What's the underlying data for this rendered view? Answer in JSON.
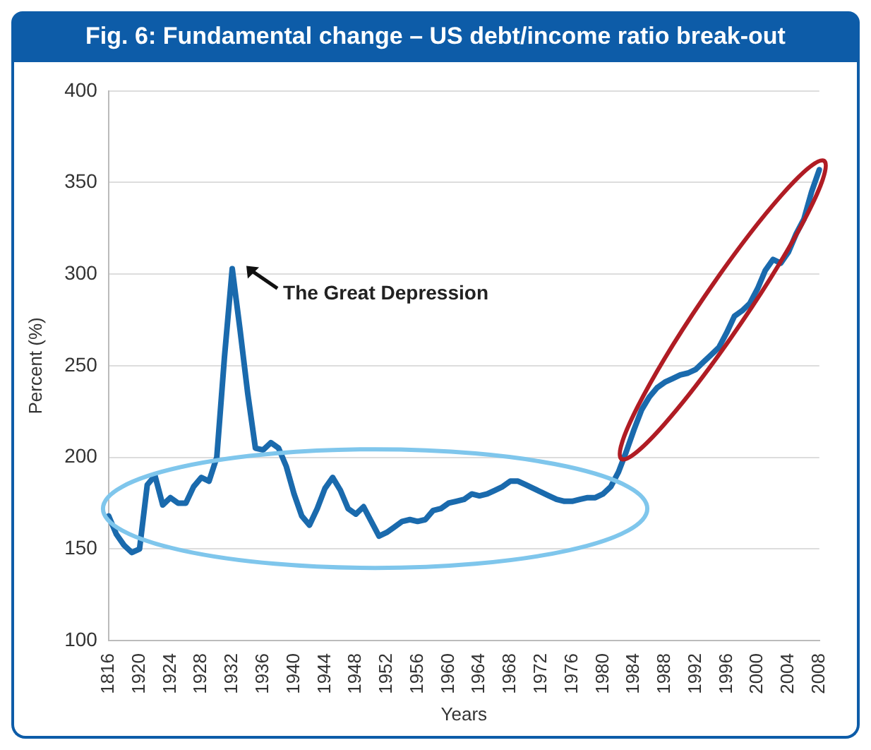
{
  "chart_data": {
    "type": "line",
    "title": "Fig. 6: Fundamental change – US debt/income ratio break-out",
    "xlabel": "Years",
    "ylabel": "Percent (%)",
    "categories": [
      "1816",
      null,
      null,
      null,
      "1920",
      null,
      null,
      null,
      "1924",
      null,
      null,
      null,
      "1928",
      null,
      null,
      null,
      "1932",
      null,
      null,
      null,
      "1936",
      null,
      null,
      null,
      "1940",
      null,
      null,
      null,
      "1944",
      null,
      null,
      null,
      "1948",
      null,
      null,
      null,
      "1952",
      null,
      null,
      null,
      "1956",
      null,
      null,
      null,
      "1960",
      null,
      null,
      null,
      "1964",
      null,
      null,
      null,
      "1968",
      null,
      null,
      null,
      "1972",
      null,
      null,
      null,
      "1976",
      null,
      null,
      null,
      "1980",
      null,
      null,
      null,
      "1984",
      null,
      null,
      null,
      "1988",
      null,
      null,
      null,
      "1992",
      null,
      null,
      null,
      "1996",
      null,
      null,
      null,
      "2000",
      null,
      null,
      null,
      "2004",
      null,
      null,
      null,
      "2008"
    ],
    "series": [
      {
        "color": "#1a6aad",
        "values": [
          168,
          158,
          152,
          148,
          150,
          185,
          190,
          174,
          178,
          175,
          175,
          184,
          189,
          187,
          200,
          255,
          303,
          270,
          235,
          205,
          204,
          208,
          205,
          195,
          180,
          168,
          163,
          172,
          183,
          189,
          182,
          172,
          169,
          173,
          165,
          157,
          159,
          162,
          165,
          166,
          165,
          166,
          171,
          172,
          175,
          176,
          177,
          180,
          179,
          180,
          182,
          184,
          187,
          187,
          185,
          183,
          181,
          179,
          177,
          176,
          176,
          177,
          178,
          178,
          180,
          184,
          192,
          203,
          215,
          226,
          233,
          238,
          241,
          243,
          245,
          246,
          248,
          252,
          256,
          260,
          268,
          277,
          280,
          284,
          292,
          302,
          308,
          306,
          312,
          322,
          330,
          345,
          357
        ]
      }
    ],
    "ylim": [
      100,
      400
    ],
    "yticks": [
      100,
      150,
      200,
      250,
      300,
      350,
      400
    ],
    "grid": "y",
    "marker": "none",
    "line_style": "solid",
    "annotations": [
      {
        "text": "The Great Depression",
        "x": "1932",
        "y": 303
      }
    ]
  }
}
